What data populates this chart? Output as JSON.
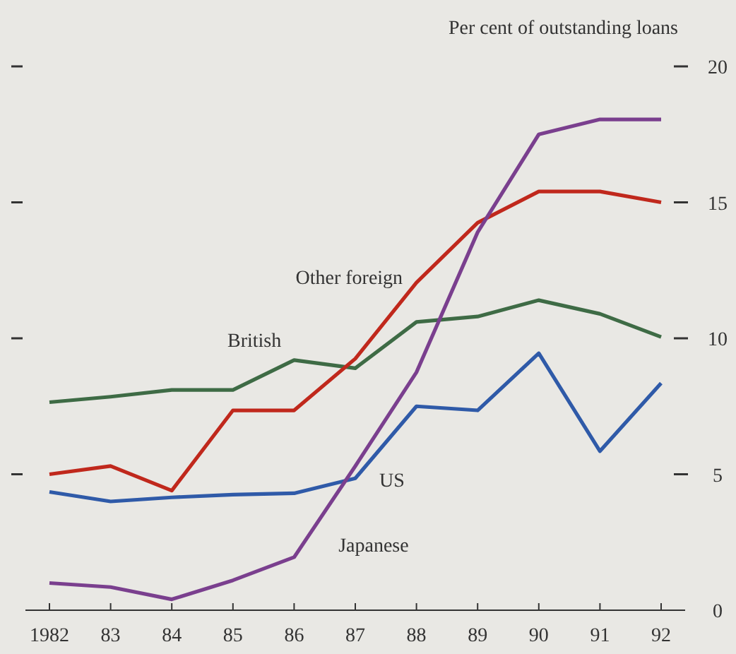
{
  "chart_data": {
    "type": "line",
    "ylabel": "Per cent of outstanding loans",
    "categories": [
      "1982",
      "83",
      "84",
      "85",
      "86",
      "87",
      "88",
      "89",
      "90",
      "91",
      "92"
    ],
    "ylim": [
      0,
      20
    ],
    "yticks": [
      0,
      5,
      10,
      15,
      20
    ],
    "grid": false,
    "marker": "none",
    "line_style": "solid",
    "series": [
      {
        "name": "British",
        "color": "#3e6b45",
        "values": [
          7.65,
          7.85,
          8.1,
          8.1,
          9.2,
          8.9,
          10.6,
          10.8,
          11.4,
          10.9,
          10.05
        ]
      },
      {
        "name": "Other foreign",
        "color": "#c0281c",
        "values": [
          5.0,
          5.3,
          4.4,
          7.35,
          7.35,
          9.25,
          12.05,
          14.25,
          15.4,
          15.4,
          15.0
        ]
      },
      {
        "name": "US",
        "color": "#2f5aa8",
        "values": [
          4.35,
          4.0,
          4.15,
          4.25,
          4.3,
          4.85,
          7.5,
          7.35,
          9.45,
          5.85,
          8.35
        ]
      },
      {
        "name": "Japanese",
        "color": "#7a3f8e",
        "values": [
          1.0,
          0.85,
          0.4,
          1.1,
          1.95,
          5.3,
          8.75,
          13.9,
          17.5,
          18.05,
          18.05
        ]
      }
    ]
  }
}
